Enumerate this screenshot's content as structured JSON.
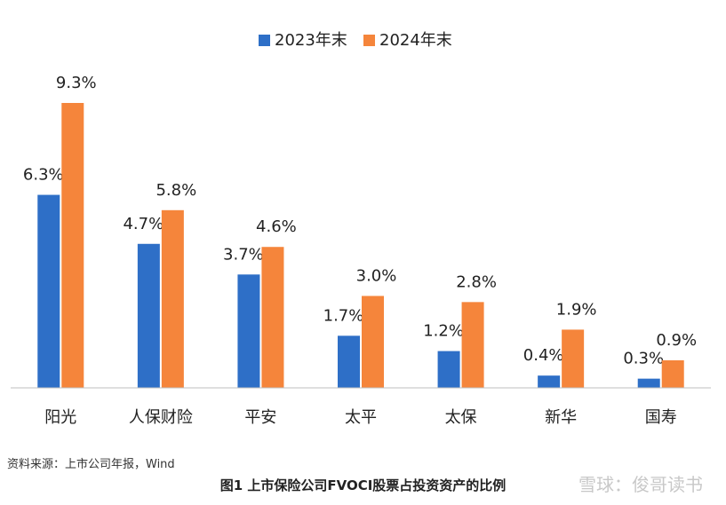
{
  "chart_data": {
    "type": "bar",
    "categories": [
      "阳光",
      "人保财险",
      "平安",
      "太平",
      "太保",
      "新华",
      "国寿"
    ],
    "series": [
      {
        "name": "2023年末",
        "color": "#2e6fc7",
        "values": [
          6.3,
          4.7,
          3.7,
          1.7,
          1.2,
          0.4,
          0.3
        ],
        "labels": [
          "6.3%",
          "4.7%",
          "3.7%",
          "1.7%",
          "1.2%",
          "0.4%",
          "0.3%"
        ]
      },
      {
        "name": "2024年末",
        "color": "#f5853b",
        "values": [
          9.3,
          5.8,
          4.6,
          3.0,
          2.8,
          1.9,
          0.9
        ],
        "labels": [
          "9.3%",
          "5.8%",
          "4.6%",
          "3.0%",
          "2.8%",
          "1.9%",
          "0.9%"
        ]
      }
    ],
    "ylim": [
      0,
      9.3
    ],
    "grid": false,
    "legend": "top-center",
    "source": "资料来源：上市公司年报，Wind",
    "caption": "图1  上市保险公司FVOCI股票占投资资产的比例"
  },
  "watermark": "雪球：俊哥读书"
}
